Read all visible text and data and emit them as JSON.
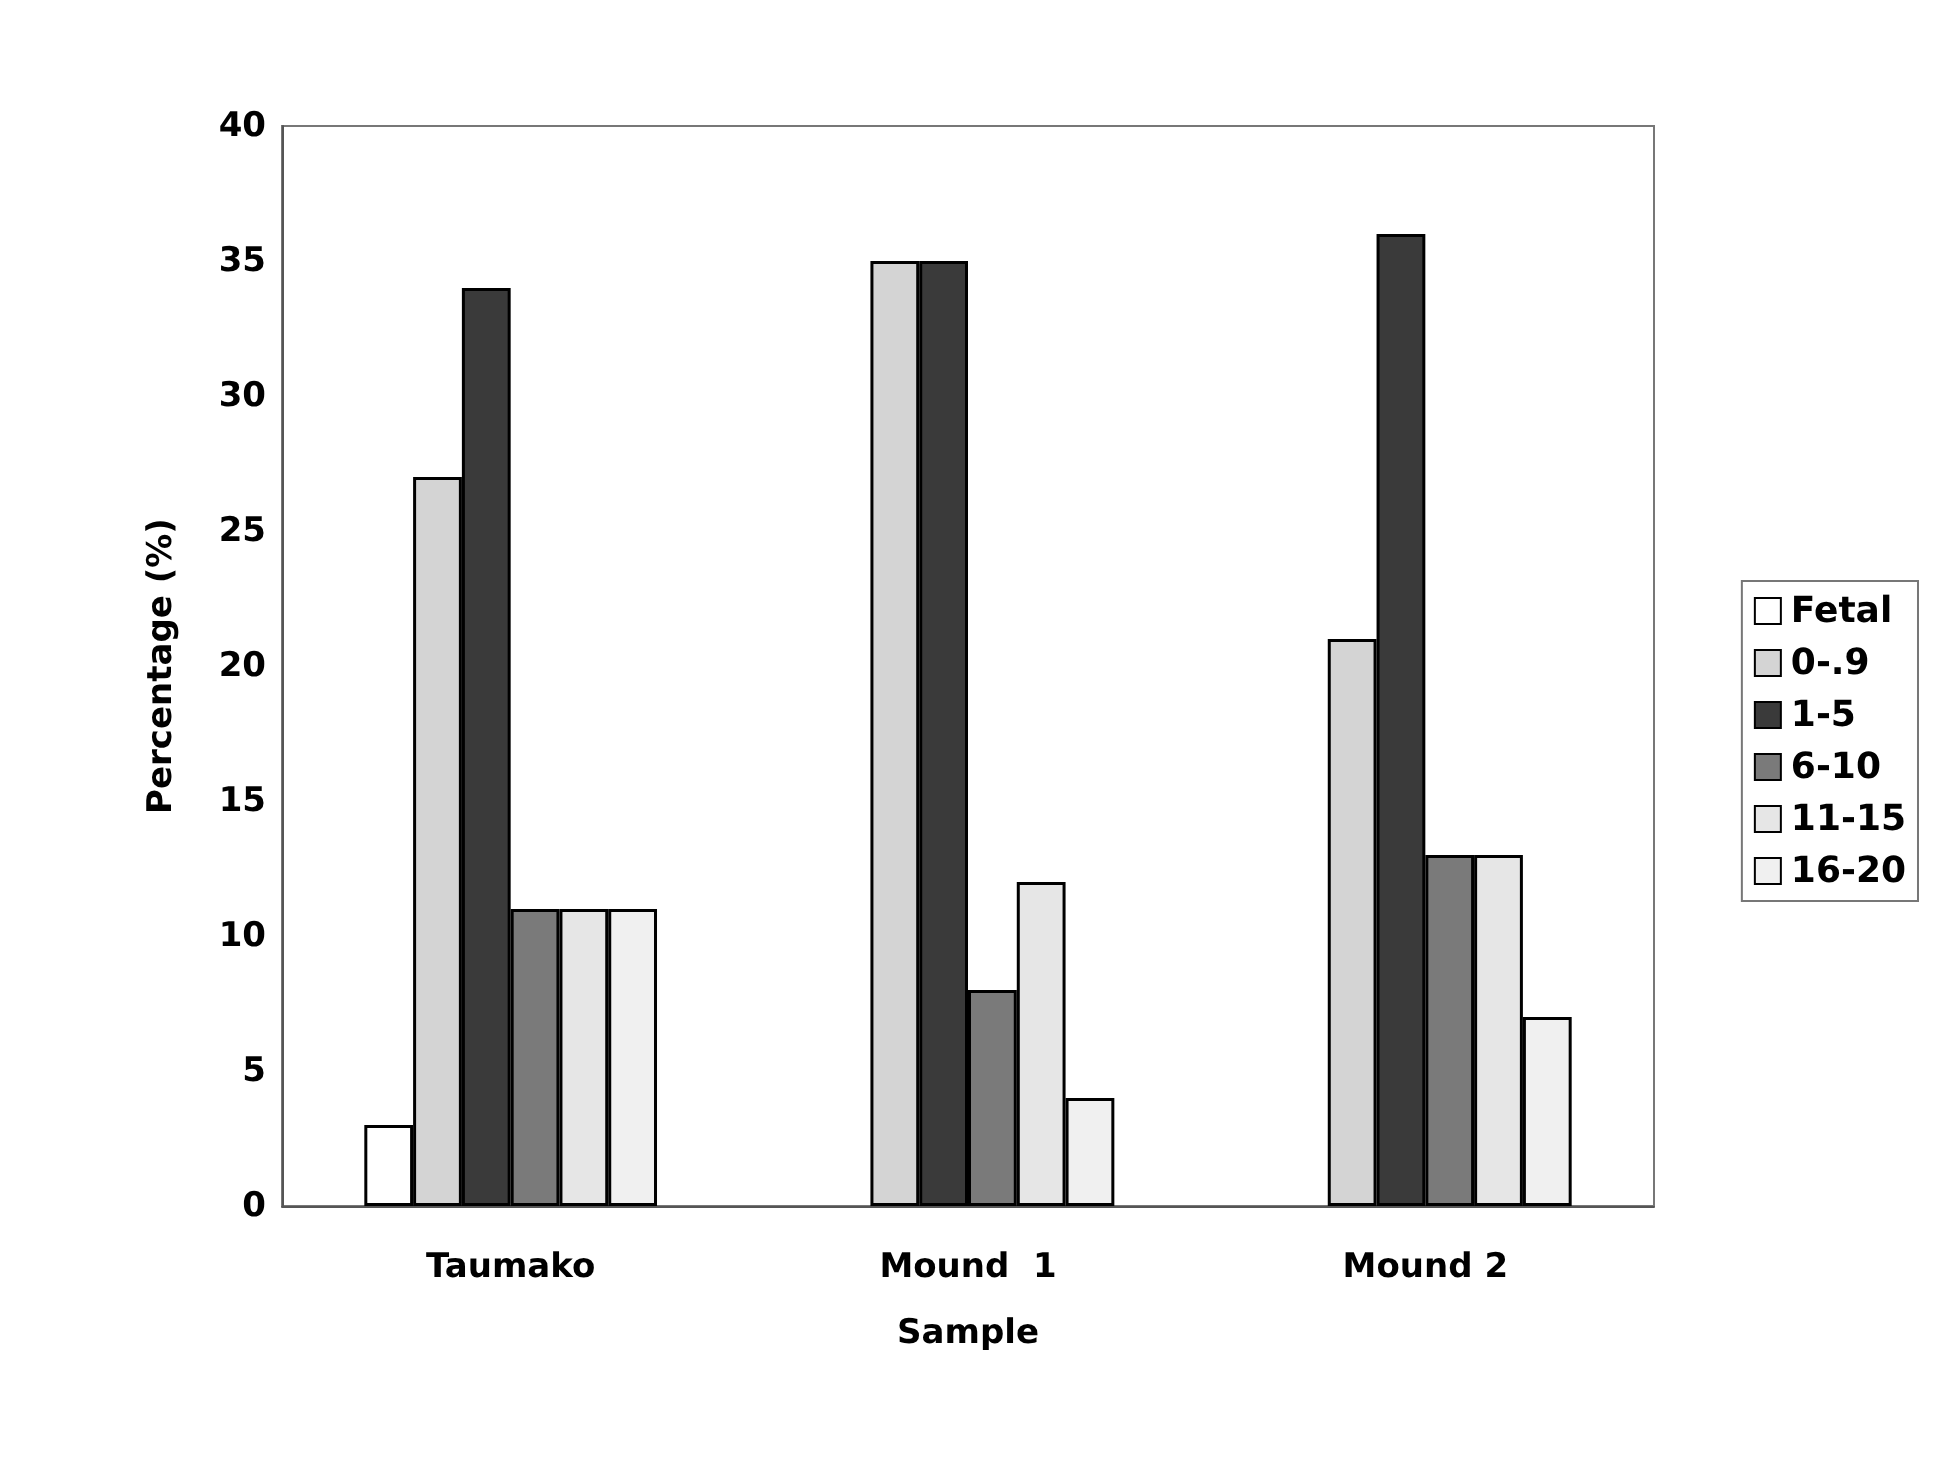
{
  "chart_data": {
    "type": "bar",
    "xlabel": "Sample",
    "ylabel": "Percentage (%)",
    "categories": [
      "Taumako",
      "Mound  1",
      "Mound 2"
    ],
    "series": [
      {
        "name": "Fetal",
        "color": "#ffffff",
        "values": [
          3,
          0,
          0
        ]
      },
      {
        "name": "0-.9",
        "color": "#d4d4d4",
        "values": [
          27,
          35,
          21
        ]
      },
      {
        "name": "1-5",
        "color": "#3a3a3a",
        "values": [
          34,
          35,
          36
        ]
      },
      {
        "name": "6-10",
        "color": "#7a7a7a",
        "values": [
          11,
          8,
          13
        ]
      },
      {
        "name": "11-15",
        "color": "#e6e6e6",
        "values": [
          11,
          12,
          13
        ]
      },
      {
        "name": "16-20",
        "color": "#f0f0f0",
        "values": [
          11,
          4,
          7
        ]
      }
    ],
    "ylim": [
      0,
      40
    ],
    "yticks": [
      0,
      5,
      10,
      15,
      20,
      25,
      30,
      35,
      40
    ],
    "grid": false,
    "legend": "right"
  }
}
